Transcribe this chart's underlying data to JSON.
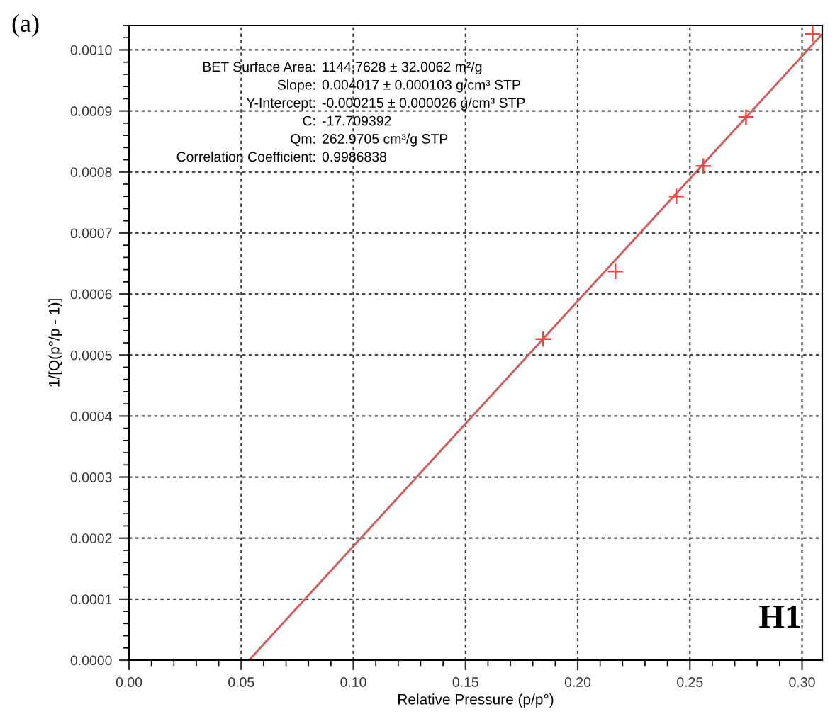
{
  "chart_data": {
    "type": "scatter",
    "xlabel": "Relative Pressure (p/p°)",
    "ylabel": "1/[Q(p°/p - 1)]",
    "series": [
      {
        "color": "#ff4040",
        "marker": "cross",
        "x": [
          0.1846,
          0.2168,
          0.244,
          0.256,
          0.275,
          0.3047
        ],
        "values": [
          0.000526,
          0.000637,
          0.00076,
          0.00081,
          0.00089,
          0.001026
        ]
      },
      {
        "type": "line",
        "color": "#d06060",
        "marker": "none",
        "x": [
          0.0535,
          0.309
        ],
        "values": [
          0,
          0.001026
        ]
      }
    ],
    "xlim": [
      0,
      0.309
    ],
    "ylim": [
      0,
      0.00104
    ],
    "xticks": [
      {
        "value": 0,
        "label": "0.00"
      },
      {
        "value": 0.05,
        "label": "0.05"
      },
      {
        "value": 0.1,
        "label": "0.10"
      },
      {
        "value": 0.15,
        "label": "0.15"
      },
      {
        "value": 0.2,
        "label": "0.20"
      },
      {
        "value": 0.25,
        "label": "0.25"
      },
      {
        "value": 0.3,
        "label": "0.30"
      }
    ],
    "yticks": [
      {
        "value": 0,
        "label": "0.0000"
      },
      {
        "value": 0.0001,
        "label": "0.0001"
      },
      {
        "value": 0.0002,
        "label": "0.0002"
      },
      {
        "value": 0.0003,
        "label": "0.0003"
      },
      {
        "value": 0.0004,
        "label": "0.0004"
      },
      {
        "value": 0.0005,
        "label": "0.0005"
      },
      {
        "value": 0.0006,
        "label": "0.0006"
      },
      {
        "value": 0.0007,
        "label": "0.0007"
      },
      {
        "value": 0.0008,
        "label": "0.0008"
      },
      {
        "value": 0.0009,
        "label": "0.0009"
      },
      {
        "value": 0.001,
        "label": "0.0010"
      }
    ],
    "grid": true,
    "legend": false,
    "annotations": [
      "(a)",
      "H1",
      "BET Surface Area:",
      "1144.7628 ± 32.0062 m²/g",
      "Slope:",
      "0.004017 ± 0.000103 g/cm³ STP",
      "Y-Intercept:",
      "-0.000215 ± 0.000026 g/cm³ STP",
      "C:",
      "-17.709392",
      "Qm:",
      "262.9705 cm³/g STP",
      "Correlation Coefficient:",
      "0.9986838"
    ]
  }
}
